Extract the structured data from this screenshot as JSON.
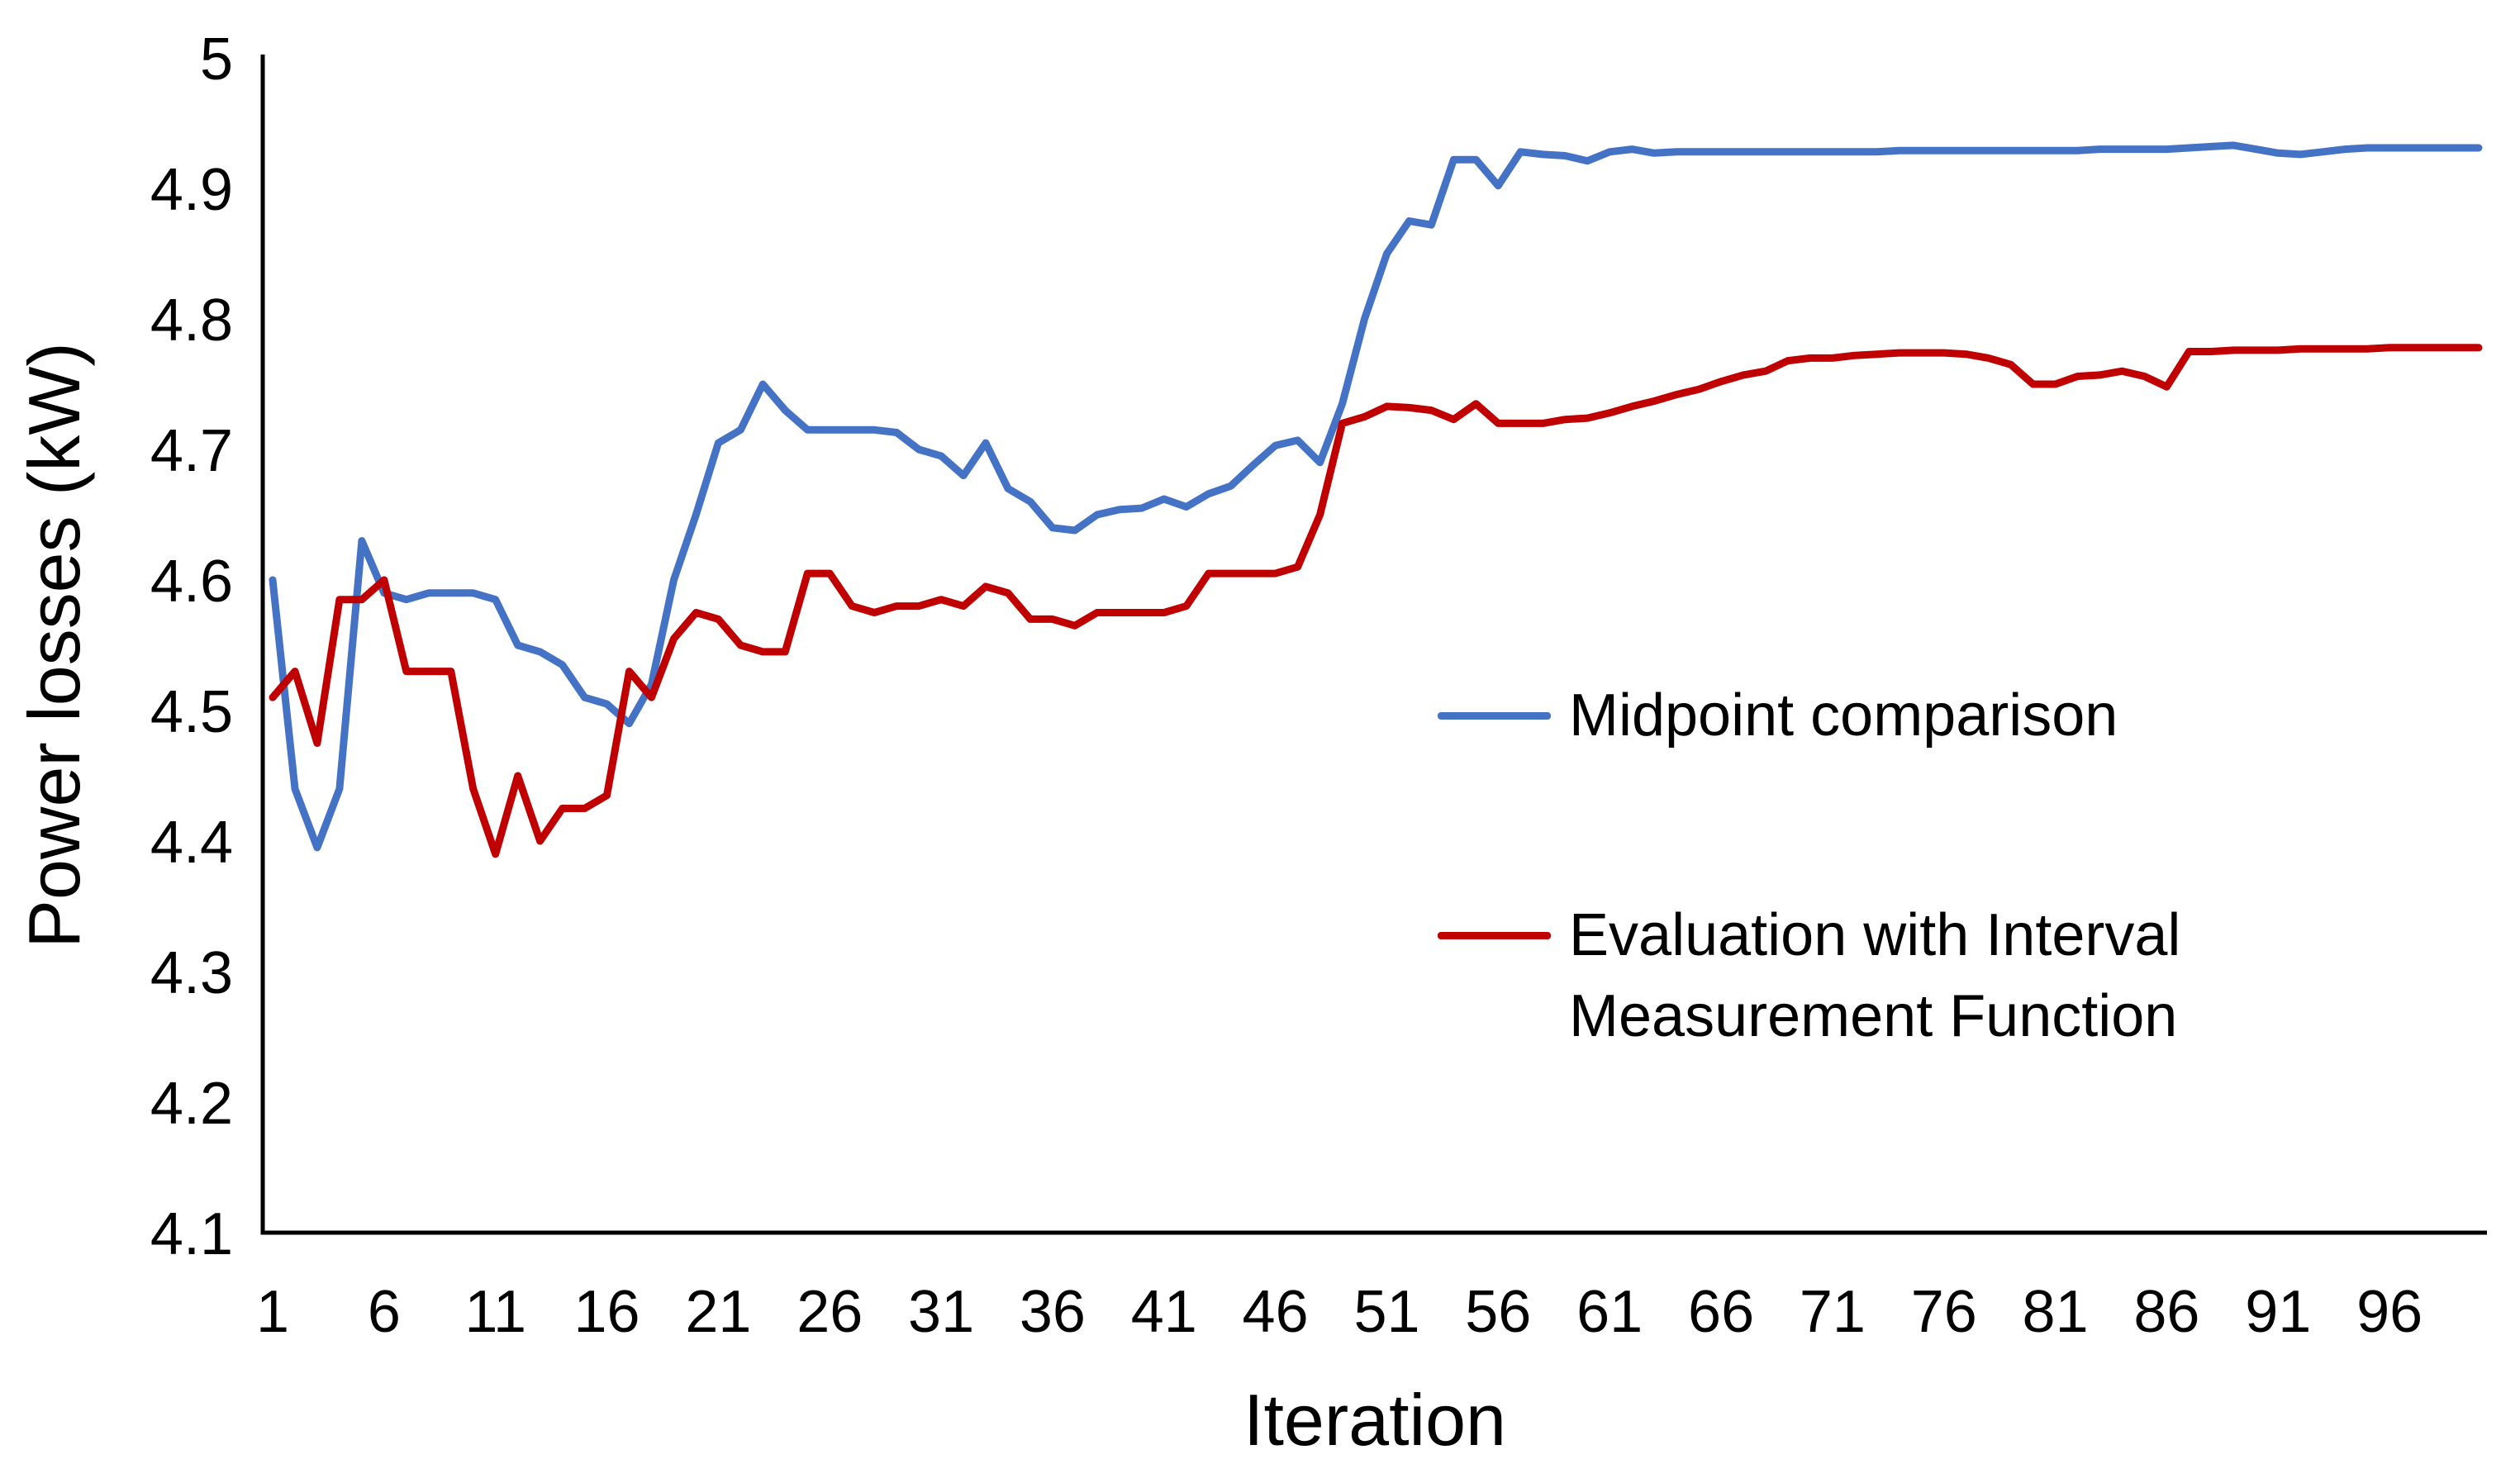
{
  "chart_data": {
    "type": "line",
    "title": "",
    "xlabel": "Iteration",
    "ylabel": "Power losses (kW)",
    "x_start": 1,
    "x_step": 1,
    "xlim": [
      1,
      100
    ],
    "ylim": [
      4.1,
      5.0
    ],
    "grid": false,
    "legend_position": "middle-right",
    "xticks": [
      1,
      6,
      11,
      16,
      21,
      26,
      31,
      36,
      41,
      46,
      51,
      56,
      61,
      66,
      71,
      76,
      81,
      86,
      91,
      96
    ],
    "yticks": [
      "4.1",
      "4.2",
      "4.3",
      "4.4",
      "4.5",
      "4.6",
      "4.7",
      "4.8",
      "4.9",
      "5"
    ],
    "axis_color": "#000000",
    "text_color": "#000000",
    "series": [
      {
        "name": "Midpoint comparison",
        "color": "#4472C4",
        "values": [
          4.6,
          4.44,
          4.395,
          4.44,
          4.63,
          4.59,
          4.585,
          4.59,
          4.59,
          4.59,
          4.585,
          4.55,
          4.545,
          4.535,
          4.51,
          4.505,
          4.49,
          4.52,
          4.6,
          4.65,
          4.705,
          4.715,
          4.75,
          4.73,
          4.715,
          4.715,
          4.715,
          4.715,
          4.713,
          4.7,
          4.695,
          4.68,
          4.705,
          4.67,
          4.66,
          4.64,
          4.638,
          4.65,
          4.654,
          4.655,
          4.662,
          4.656,
          4.666,
          4.672,
          4.688,
          4.703,
          4.707,
          4.69,
          4.735,
          4.8,
          4.85,
          4.875,
          4.872,
          4.922,
          4.922,
          4.902,
          4.928,
          4.926,
          4.925,
          4.921,
          4.928,
          4.93,
          4.927,
          4.928,
          4.928,
          4.928,
          4.928,
          4.928,
          4.928,
          4.928,
          4.928,
          4.928,
          4.928,
          4.929,
          4.929,
          4.929,
          4.929,
          4.929,
          4.929,
          4.929,
          4.929,
          4.929,
          4.93,
          4.93,
          4.93,
          4.93,
          4.931,
          4.932,
          4.933,
          4.93,
          4.927,
          4.926,
          4.928,
          4.93,
          4.931,
          4.931,
          4.931,
          4.931,
          4.931,
          4.931
        ]
      },
      {
        "name": "Evaluation with Interval Measurement Function",
        "color": "#C00000",
        "values": [
          4.51,
          4.53,
          4.475,
          4.585,
          4.585,
          4.6,
          4.53,
          4.53,
          4.53,
          4.44,
          4.39,
          4.45,
          4.4,
          4.425,
          4.425,
          4.435,
          4.53,
          4.51,
          4.555,
          4.575,
          4.57,
          4.55,
          4.545,
          4.545,
          4.605,
          4.605,
          4.58,
          4.575,
          4.58,
          4.58,
          4.585,
          4.58,
          4.595,
          4.59,
          4.57,
          4.57,
          4.565,
          4.575,
          4.575,
          4.575,
          4.575,
          4.58,
          4.605,
          4.605,
          4.605,
          4.605,
          4.61,
          4.65,
          4.72,
          4.725,
          4.733,
          4.732,
          4.73,
          4.723,
          4.735,
          4.72,
          4.72,
          4.72,
          4.723,
          4.724,
          4.728,
          4.733,
          4.737,
          4.742,
          4.746,
          4.752,
          4.757,
          4.76,
          4.768,
          4.77,
          4.77,
          4.772,
          4.773,
          4.774,
          4.774,
          4.774,
          4.773,
          4.77,
          4.765,
          4.75,
          4.75,
          4.756,
          4.757,
          4.76,
          4.756,
          4.748,
          4.775,
          4.775,
          4.776,
          4.776,
          4.776,
          4.777,
          4.777,
          4.777,
          4.777,
          4.778,
          4.778,
          4.778,
          4.778,
          4.778
        ]
      }
    ]
  }
}
